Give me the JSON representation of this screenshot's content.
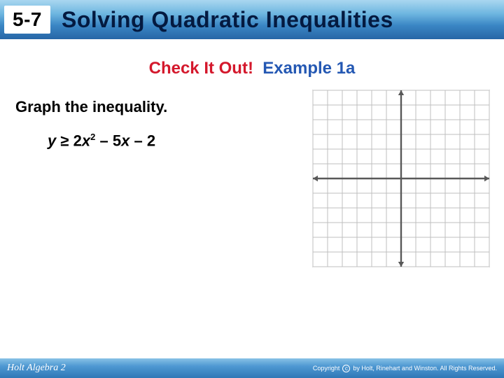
{
  "header": {
    "lesson_number": "5-7",
    "title": "Solving Quadratic Inequalities"
  },
  "subheader": {
    "red_text": "Check It Out!",
    "blue_text": "Example 1a"
  },
  "instruction": "Graph the inequality.",
  "inequality": {
    "lhs_var": "y",
    "op": "≥",
    "coef1": "2",
    "var1": "x",
    "exp1": "2",
    "minus1": "–",
    "coef2": "5",
    "var2": "x",
    "minus2": "–",
    "const": "2"
  },
  "graph": {
    "xmin": -6,
    "xmax": 6,
    "ymin": -6,
    "ymax": 6,
    "cell": 21,
    "grid_color": "#bfbfbf",
    "minor_grid_color": "#e0e0e0",
    "axis_color": "#585858",
    "bg_color": "#ffffff"
  },
  "footer": {
    "left": "Holt Algebra 2",
    "right": "Copyright © by Holt, Rinehart and Winston. All Rights Reserved."
  }
}
